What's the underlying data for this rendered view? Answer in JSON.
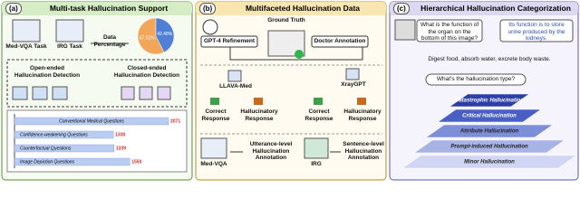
{
  "a": {
    "label": "(a)",
    "title": "Multi-task Hallucination Support",
    "med_vqa_task": "Med-VQA Task",
    "irg_task": "IRG Task",
    "data_percentage": "Data Percentage",
    "pie": {
      "values": [
        57.52,
        42.48
      ],
      "value_labels": [
        "57.52%",
        "42.48%"
      ],
      "colors": [
        "#f2a65a",
        "#4f7fd6"
      ]
    },
    "open_ended": "Open-ended Hallucination Detection",
    "closed_ended": "Closed-ended Hallucination Detection",
    "bars": {
      "categories": [
        "Conventional Medical Questions",
        "Confidence-weakening Questions",
        "Counterfactual Questions",
        "Image Depiction Questions"
      ],
      "values": [
        2071,
        1330,
        1339,
        1550
      ],
      "color": "#b9cdf3",
      "label_color": "#d12a2a"
    }
  },
  "b": {
    "label": "(b)",
    "title": "Multifaceted Hallucination Data",
    "gpt4": "GPT-4 Refinement",
    "ground_truth": "Ground Truth",
    "doctor": "Doctor Annotation",
    "llava": "LLAVA-Med",
    "xraygpt": "XrayGPT",
    "correct_1": "Correct Response",
    "halluc_1": "Hallucinatory Response",
    "correct_2": "Correct Response",
    "halluc_2": "Hallucinatory Response",
    "med_vqa": "Med-VQA",
    "utterance": "Utterance-level Hallucination Annotation",
    "irg": "IRG",
    "sentence": "Sentence-level Hallucination Annotation"
  },
  "c": {
    "label": "(c)",
    "title": "Hierarchical Hallucination Categorization",
    "question": "What is the function of the organ on the bottom of this image?",
    "answer": "Its function is to store urine produced by the kidneys.",
    "fact": "Digest food, absorb water, excrete body waste.",
    "ask": "What's the hallucination type?",
    "levels": [
      "Catastrophic Hallucination",
      "Critical Hallucination",
      "Attribute Hallucination",
      "Prompt-induced Hallucination",
      "Minor Hallucination"
    ]
  }
}
